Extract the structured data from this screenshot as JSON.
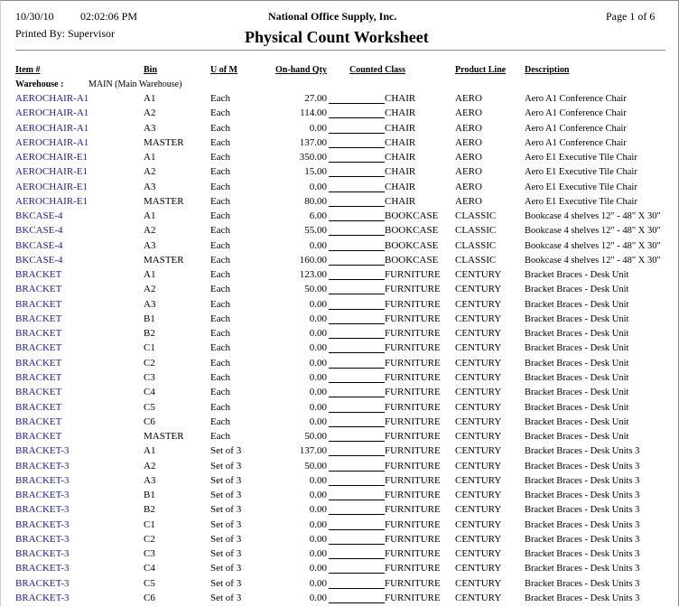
{
  "header": {
    "date": "10/30/10",
    "time": "02:02:06 PM",
    "company": "National Office Supply, Inc.",
    "page": "Page 1 of 6",
    "printed_by": "Printed By: Supervisor",
    "title": "Physical Count Worksheet"
  },
  "columns": [
    "Item #",
    "Bin",
    "U of M",
    "On-hand Qty",
    "Counted Class",
    "Product Line",
    "Description"
  ],
  "warehouse": {
    "label": "Warehouse :",
    "value": "MAIN (Main Warehouse)"
  },
  "rows": [
    [
      "AEROCHAIR-A1",
      "A1",
      "Each",
      "27.00",
      "CHAIR",
      "AERO",
      "Aero A1 Conference Chair"
    ],
    [
      "AEROCHAIR-A1",
      "A2",
      "Each",
      "114.00",
      "CHAIR",
      "AERO",
      "Aero A1 Conference Chair"
    ],
    [
      "AEROCHAIR-A1",
      "A3",
      "Each",
      "0.00",
      "CHAIR",
      "AERO",
      "Aero A1 Conference Chair"
    ],
    [
      "AEROCHAIR-A1",
      "MASTER",
      "Each",
      "137.00",
      "CHAIR",
      "AERO",
      "Aero A1 Conference Chair"
    ],
    [
      "AEROCHAIR-E1",
      "A1",
      "Each",
      "350.00",
      "CHAIR",
      "AERO",
      "Aero E1 Executive Tile Chair"
    ],
    [
      "AEROCHAIR-E1",
      "A2",
      "Each",
      "15.00",
      "CHAIR",
      "AERO",
      "Aero E1 Executive Tile Chair"
    ],
    [
      "AEROCHAIR-E1",
      "A3",
      "Each",
      "0.00",
      "CHAIR",
      "AERO",
      "Aero E1 Executive Tile Chair"
    ],
    [
      "AEROCHAIR-E1",
      "MASTER",
      "Each",
      "80.00",
      "CHAIR",
      "AERO",
      "Aero E1 Executive Tile Chair"
    ],
    [
      "BKCASE-4",
      "A1",
      "Each",
      "6.00",
      "BOOKCASE",
      "CLASSIC",
      "Bookcase 4 shelves 12\" - 48\" X 30\""
    ],
    [
      "BKCASE-4",
      "A2",
      "Each",
      "55.00",
      "BOOKCASE",
      "CLASSIC",
      "Bookcase 4 shelves 12\" - 48\" X 30\""
    ],
    [
      "BKCASE-4",
      "A3",
      "Each",
      "0.00",
      "BOOKCASE",
      "CLASSIC",
      "Bookcase 4 shelves 12\" - 48\" X 30\""
    ],
    [
      "BKCASE-4",
      "MASTER",
      "Each",
      "160.00",
      "BOOKCASE",
      "CLASSIC",
      "Bookcase 4 shelves 12\" - 48\" X 30\""
    ],
    [
      "BRACKET",
      "A1",
      "Each",
      "123.00",
      "FURNITURE",
      "CENTURY",
      "Bracket Braces - Desk Unit"
    ],
    [
      "BRACKET",
      "A2",
      "Each",
      "50.00",
      "FURNITURE",
      "CENTURY",
      "Bracket Braces - Desk Unit"
    ],
    [
      "BRACKET",
      "A3",
      "Each",
      "0.00",
      "FURNITURE",
      "CENTURY",
      "Bracket Braces - Desk Unit"
    ],
    [
      "BRACKET",
      "B1",
      "Each",
      "0.00",
      "FURNITURE",
      "CENTURY",
      "Bracket Braces - Desk Unit"
    ],
    [
      "BRACKET",
      "B2",
      "Each",
      "0.00",
      "FURNITURE",
      "CENTURY",
      "Bracket Braces - Desk Unit"
    ],
    [
      "BRACKET",
      "C1",
      "Each",
      "0.00",
      "FURNITURE",
      "CENTURY",
      "Bracket Braces - Desk Unit"
    ],
    [
      "BRACKET",
      "C2",
      "Each",
      "0.00",
      "FURNITURE",
      "CENTURY",
      "Bracket Braces - Desk Unit"
    ],
    [
      "BRACKET",
      "C3",
      "Each",
      "0.00",
      "FURNITURE",
      "CENTURY",
      "Bracket Braces - Desk Unit"
    ],
    [
      "BRACKET",
      "C4",
      "Each",
      "0.00",
      "FURNITURE",
      "CENTURY",
      "Bracket Braces - Desk Unit"
    ],
    [
      "BRACKET",
      "C5",
      "Each",
      "0.00",
      "FURNITURE",
      "CENTURY",
      "Bracket Braces - Desk Unit"
    ],
    [
      "BRACKET",
      "C6",
      "Each",
      "0.00",
      "FURNITURE",
      "CENTURY",
      "Bracket Braces - Desk Unit"
    ],
    [
      "BRACKET",
      "MASTER",
      "Each",
      "50.00",
      "FURNITURE",
      "CENTURY",
      "Bracket Braces - Desk Unit"
    ],
    [
      "BRACKET-3",
      "A1",
      "Set of 3",
      "137.00",
      "FURNITURE",
      "CENTURY",
      "Bracket Braces - Desk Units 3"
    ],
    [
      "BRACKET-3",
      "A2",
      "Set of 3",
      "50.00",
      "FURNITURE",
      "CENTURY",
      "Bracket Braces - Desk Units 3"
    ],
    [
      "BRACKET-3",
      "A3",
      "Set of 3",
      "0.00",
      "FURNITURE",
      "CENTURY",
      "Bracket Braces - Desk Units 3"
    ],
    [
      "BRACKET-3",
      "B1",
      "Set of 3",
      "0.00",
      "FURNITURE",
      "CENTURY",
      "Bracket Braces - Desk Units 3"
    ],
    [
      "BRACKET-3",
      "B2",
      "Set of 3",
      "0.00",
      "FURNITURE",
      "CENTURY",
      "Bracket Braces - Desk Units 3"
    ],
    [
      "BRACKET-3",
      "C1",
      "Set of 3",
      "0.00",
      "FURNITURE",
      "CENTURY",
      "Bracket Braces - Desk Units 3"
    ],
    [
      "BRACKET-3",
      "C2",
      "Set of 3",
      "0.00",
      "FURNITURE",
      "CENTURY",
      "Bracket Braces - Desk Units 3"
    ],
    [
      "BRACKET-3",
      "C3",
      "Set of 3",
      "0.00",
      "FURNITURE",
      "CENTURY",
      "Bracket Braces - Desk Units 3"
    ],
    [
      "BRACKET-3",
      "C4",
      "Set of 3",
      "0.00",
      "FURNITURE",
      "CENTURY",
      "Bracket Braces - Desk Units 3"
    ],
    [
      "BRACKET-3",
      "C5",
      "Set of 3",
      "0.00",
      "FURNITURE",
      "CENTURY",
      "Bracket Braces - Desk Units 3"
    ],
    [
      "BRACKET-3",
      "C6",
      "Set of 3",
      "0.00",
      "FURNITURE",
      "CENTURY",
      "Bracket Braces - Desk Units 3"
    ]
  ]
}
